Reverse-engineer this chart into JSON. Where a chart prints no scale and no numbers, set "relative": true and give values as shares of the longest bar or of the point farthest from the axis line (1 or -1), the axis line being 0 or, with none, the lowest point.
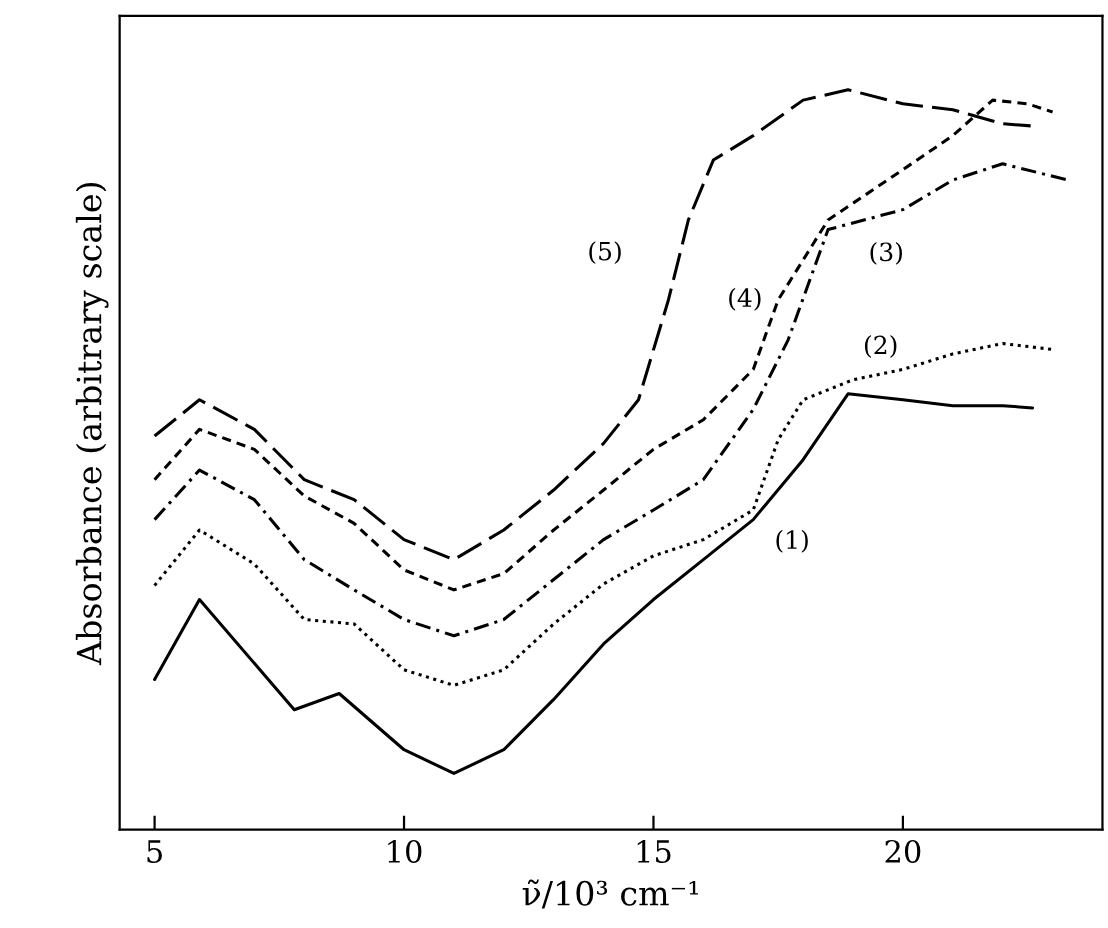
{
  "chart_data": {
    "type": "line",
    "relative": true,
    "xlabel": "ν̃/10³ cm⁻¹",
    "ylabel": "Absorbance (arbitrary scale)",
    "xlim": [
      4.3,
      24
    ],
    "xticks": [
      5,
      10,
      15,
      20
    ],
    "grid": false,
    "legend": false,
    "series": [
      {
        "name": "(1)",
        "color": "#000000",
        "line_style": "solid",
        "x": [
          5,
          5.9,
          7.8,
          8.7,
          10,
          11,
          12,
          13,
          14,
          15,
          16,
          17,
          18,
          18.9,
          20,
          21,
          22,
          22.6
        ],
        "values": [
          0.203,
          0.311,
          0.162,
          0.184,
          0.108,
          0.076,
          0.108,
          0.176,
          0.251,
          0.311,
          0.365,
          0.419,
          0.5,
          0.589,
          0.581,
          0.573,
          0.573,
          0.57
        ]
      },
      {
        "name": "(2)",
        "color": "#000000",
        "line_style": "dotted",
        "x": [
          5,
          5.9,
          7,
          8,
          9,
          10,
          11,
          12,
          13,
          14,
          15,
          16,
          17,
          17.5,
          18,
          19,
          20,
          21,
          22,
          23
        ],
        "values": [
          0.33,
          0.405,
          0.359,
          0.284,
          0.278,
          0.216,
          0.195,
          0.216,
          0.278,
          0.332,
          0.37,
          0.392,
          0.432,
          0.527,
          0.581,
          0.608,
          0.622,
          0.643,
          0.657,
          0.649
        ]
      },
      {
        "name": "(3)",
        "color": "#000000",
        "line_style": "dashdot",
        "x": [
          5,
          5.9,
          7,
          8,
          9,
          10,
          11,
          12,
          13,
          14,
          15,
          16,
          17,
          17.7,
          18.5,
          20,
          21,
          22,
          23.3
        ],
        "values": [
          0.419,
          0.486,
          0.446,
          0.365,
          0.324,
          0.284,
          0.262,
          0.284,
          0.338,
          0.392,
          0.432,
          0.473,
          0.568,
          0.662,
          0.811,
          0.838,
          0.878,
          0.9,
          0.878
        ]
      },
      {
        "name": "(4)",
        "color": "#000000",
        "line_style": "dashed",
        "x": [
          5,
          5.9,
          7,
          8,
          9,
          10,
          11,
          12,
          13,
          14,
          15,
          16,
          17,
          17.5,
          18.5,
          20,
          21,
          21.8,
          22.5,
          23
        ],
        "values": [
          0.473,
          0.541,
          0.514,
          0.451,
          0.414,
          0.351,
          0.324,
          0.346,
          0.405,
          0.459,
          0.514,
          0.554,
          0.622,
          0.716,
          0.824,
          0.892,
          0.938,
          0.986,
          0.981,
          0.97
        ]
      },
      {
        "name": "(5)",
        "color": "#000000",
        "line_style": "longdashed",
        "x": [
          5,
          5.9,
          7,
          8,
          9,
          10,
          11,
          12,
          13,
          14,
          14.7,
          15.3,
          15.7,
          16.2,
          17,
          18,
          18.9,
          20,
          21,
          22,
          22.6
        ],
        "values": [
          0.532,
          0.581,
          0.541,
          0.473,
          0.446,
          0.392,
          0.365,
          0.405,
          0.459,
          0.522,
          0.581,
          0.716,
          0.824,
          0.905,
          0.938,
          0.986,
          1,
          0.981,
          0.973,
          0.954,
          0.951
        ]
      }
    ]
  }
}
